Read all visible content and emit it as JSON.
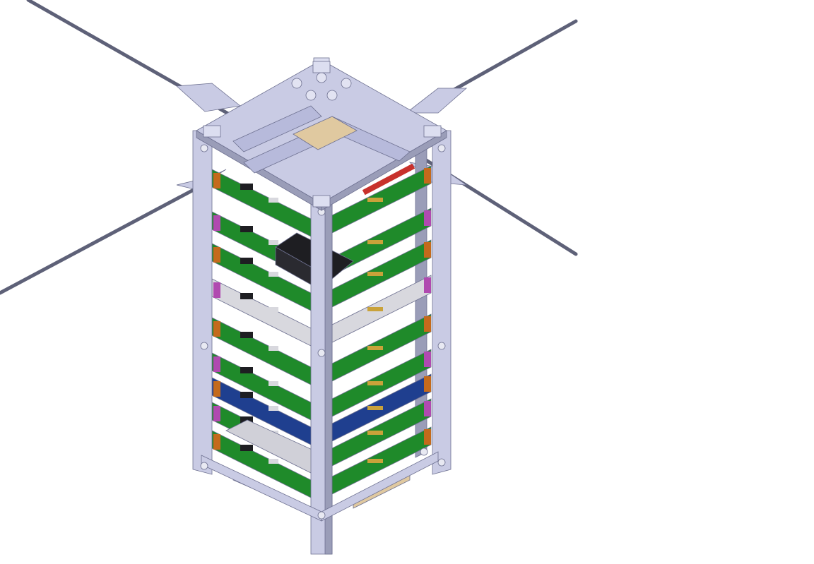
{
  "scene": {
    "subject": "cubesat-cad-render",
    "colors": {
      "background": "#ffffff",
      "frame": "#c9cbe4",
      "frame_shade": "#9a9db8",
      "frame_edge": "#6d7090",
      "antenna": "#5e6178",
      "pcb_green": "#1f8a2a",
      "pcb_dark": "#14601c",
      "pcb_blue": "#1f3f8f",
      "spacer_orange": "#c46a1c",
      "spacer_magenta": "#b04ab0",
      "ic_black": "#1e1e22",
      "connector_grey": "#d8d8de",
      "pin_gold": "#c9a23a",
      "solar_tan": "#e0c9a0",
      "red_strip": "#c8312c"
    },
    "board_colors": [
      "green",
      "green",
      "green",
      "white",
      "green",
      "green",
      "blue",
      "green",
      "green"
    ],
    "antennas": 4,
    "rails": 4
  }
}
